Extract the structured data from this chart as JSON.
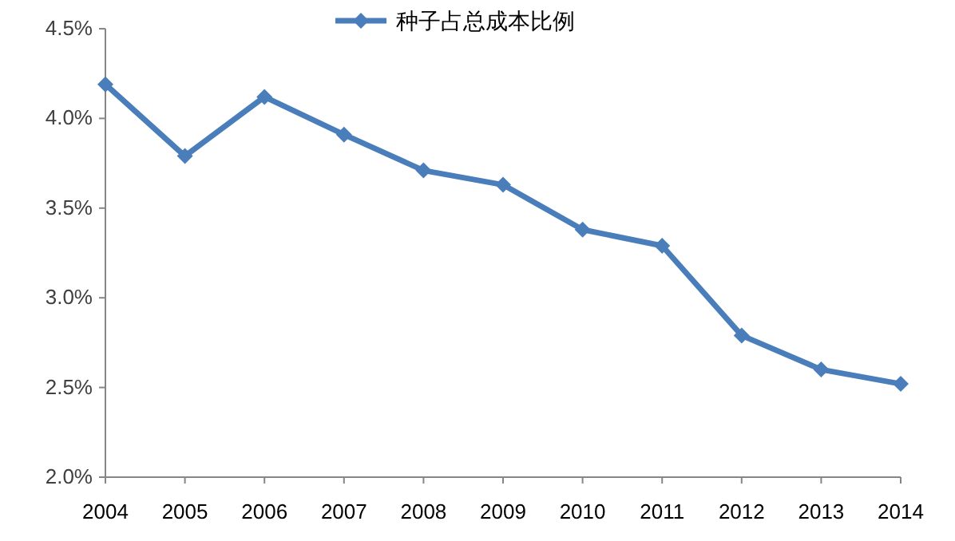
{
  "chart_data": {
    "type": "line",
    "categories": [
      "2004",
      "2005",
      "2006",
      "2007",
      "2008",
      "2009",
      "2010",
      "2011",
      "2012",
      "2013",
      "2014"
    ],
    "series": [
      {
        "name": "种子占总成本比例",
        "color": "#4a7ebb",
        "values": [
          4.19,
          3.79,
          4.12,
          3.91,
          3.71,
          3.63,
          3.38,
          3.29,
          2.79,
          2.6,
          2.52
        ]
      }
    ],
    "ylim": [
      2.0,
      4.5
    ],
    "yticks": [
      {
        "value": 2.0,
        "label": "2.0%"
      },
      {
        "value": 2.5,
        "label": "2.5%"
      },
      {
        "value": 3.0,
        "label": "3.0%"
      },
      {
        "value": 3.5,
        "label": "3.5%"
      },
      {
        "value": 4.0,
        "label": "4.0%"
      },
      {
        "value": 4.5,
        "label": "4.5%"
      }
    ],
    "legend": "top",
    "marker": "diamond",
    "line_style": "solid",
    "grid": false
  }
}
